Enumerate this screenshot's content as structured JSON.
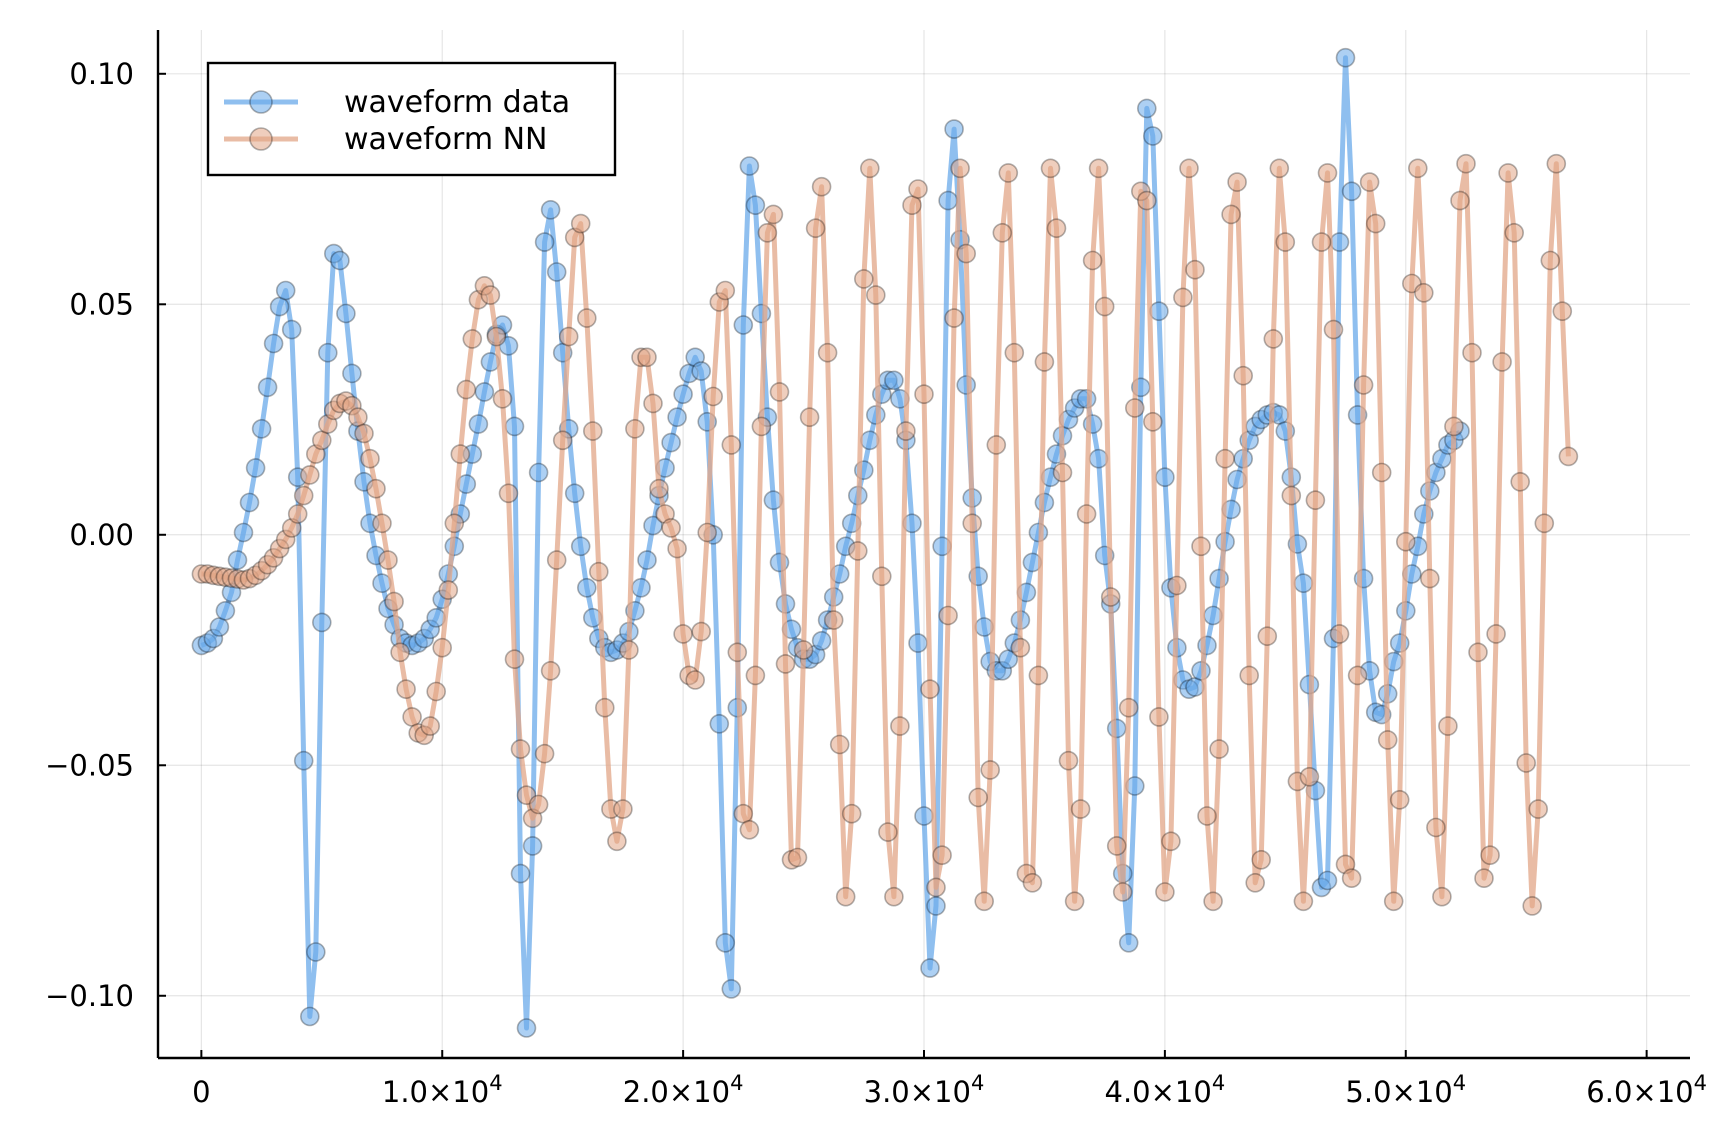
{
  "chart_data": {
    "type": "line",
    "title": "",
    "xlabel": "",
    "ylabel": "",
    "xlim": [
      -1800,
      61800
    ],
    "ylim": [
      -0.1135,
      0.1095
    ],
    "grid": true,
    "legend_position": "top-left",
    "x_ticks": [
      {
        "value": 0,
        "label": "0",
        "sup": ""
      },
      {
        "value": 10000,
        "label": "1.0×10",
        "sup": "4"
      },
      {
        "value": 20000,
        "label": "2.0×10",
        "sup": "4"
      },
      {
        "value": 30000,
        "label": "3.0×10",
        "sup": "4"
      },
      {
        "value": 40000,
        "label": "4.0×10",
        "sup": "4"
      },
      {
        "value": 50000,
        "label": "5.0×10",
        "sup": "4"
      },
      {
        "value": 60000,
        "label": "6.0×10",
        "sup": "4"
      }
    ],
    "y_ticks": [
      {
        "value": 0.1,
        "label": "0.10"
      },
      {
        "value": 0.05,
        "label": "0.05"
      },
      {
        "value": 0.0,
        "label": "0.00"
      },
      {
        "value": -0.05,
        "label": "−0.05"
      },
      {
        "value": -0.1,
        "label": "−0.10"
      }
    ],
    "series": [
      {
        "name": "waveform data",
        "color": "#6aaaea",
        "x_start": 0,
        "x_step": 250,
        "values": [
          -0.024,
          -0.0235,
          -0.0225,
          -0.02,
          -0.0165,
          -0.0125,
          -0.0055,
          0.0005,
          0.007,
          0.0145,
          0.023,
          0.032,
          0.0415,
          0.0495,
          0.053,
          0.0445,
          0.0125,
          -0.049,
          -0.1045,
          -0.0905,
          -0.019,
          0.0395,
          0.061,
          0.0595,
          0.048,
          0.035,
          0.0225,
          0.0115,
          0.0025,
          -0.0045,
          -0.0105,
          -0.016,
          -0.0195,
          -0.0225,
          -0.0235,
          -0.024,
          -0.0235,
          -0.0225,
          -0.0205,
          -0.018,
          -0.014,
          -0.0085,
          -0.0025,
          0.0045,
          0.011,
          0.0175,
          0.024,
          0.031,
          0.0375,
          0.0435,
          0.0455,
          0.041,
          0.0235,
          -0.0735,
          -0.107,
          -0.0675,
          0.0135,
          0.0635,
          0.0705,
          0.057,
          0.0395,
          0.023,
          0.009,
          -0.0025,
          -0.0115,
          -0.018,
          -0.0225,
          -0.0245,
          -0.0255,
          -0.025,
          -0.0235,
          -0.021,
          -0.0165,
          -0.0115,
          -0.0055,
          0.002,
          0.0085,
          0.0145,
          0.02,
          0.0255,
          0.0305,
          0.035,
          0.0385,
          0.0355,
          0.0245,
          0,
          -0.041,
          -0.0885,
          -0.0985,
          -0.0375,
          0.0455,
          0.08,
          0.0715,
          0.048,
          0.0255,
          0.0075,
          -0.006,
          -0.015,
          -0.0205,
          -0.0245,
          -0.027,
          -0.027,
          -0.026,
          -0.023,
          -0.0185,
          -0.0135,
          -0.0085,
          -0.0025,
          0.0025,
          0.0085,
          0.014,
          0.0205,
          0.026,
          0.0305,
          0.0335,
          0.0335,
          0.0295,
          0.0205,
          0.0025,
          -0.0235,
          -0.061,
          -0.094,
          -0.0805,
          -0.0025,
          0.0725,
          0.088,
          0.064,
          0.0325,
          0.008,
          -0.009,
          -0.02,
          -0.0275,
          -0.0295,
          -0.0295,
          -0.027,
          -0.0235,
          -0.0185,
          -0.0125,
          -0.006,
          0.0005,
          0.007,
          0.0125,
          0.0175,
          0.0215,
          0.025,
          0.0275,
          0.0295,
          0.0295,
          0.024,
          0.0165,
          -0.0045,
          -0.015,
          -0.042,
          -0.0735,
          -0.0885,
          -0.0545,
          0.032,
          0.0925,
          0.0865,
          0.0485,
          0.0125,
          -0.0115,
          -0.0245,
          -0.0315,
          -0.0335,
          -0.033,
          -0.0295,
          -0.024,
          -0.0175,
          -0.0095,
          -0.0015,
          0.0055,
          0.012,
          0.0165,
          0.0205,
          0.0235,
          0.025,
          0.026,
          0.0265,
          0.026,
          0.0225,
          0.0125,
          -0.002,
          -0.0105,
          -0.0325,
          -0.0555,
          -0.0765,
          -0.075,
          -0.0225,
          0.0635,
          0.1035,
          0.0745,
          0.026,
          -0.0095,
          -0.0295,
          -0.0385,
          -0.039,
          -0.0345,
          -0.0275,
          -0.0235,
          -0.0165,
          -0.0085,
          -0.0025,
          0.0045,
          0.0095,
          0.0135,
          0.0165,
          0.0195,
          0.0205,
          0.0225
        ]
      },
      {
        "name": "waveform NN",
        "color": "#e2a587",
        "x_start": 0,
        "x_step": 250,
        "values": [
          -0.0085,
          -0.0085,
          -0.0088,
          -0.009,
          -0.0092,
          -0.0094,
          -0.0096,
          -0.0098,
          -0.0095,
          -0.0088,
          -0.0078,
          -0.0065,
          -0.005,
          -0.003,
          -0.001,
          0.0015,
          0.0045,
          0.0085,
          0.013,
          0.0175,
          0.0205,
          0.024,
          0.027,
          0.0285,
          0.029,
          0.028,
          0.0255,
          0.022,
          0.0165,
          0.01,
          0.0025,
          -0.0055,
          -0.0145,
          -0.0255,
          -0.0335,
          -0.0395,
          -0.043,
          -0.0435,
          -0.0415,
          -0.034,
          -0.0245,
          -0.012,
          0.0025,
          0.0175,
          0.0315,
          0.0425,
          0.051,
          0.054,
          0.052,
          0.043,
          0.0295,
          0.009,
          -0.027,
          -0.0465,
          -0.0565,
          -0.0615,
          -0.0585,
          -0.0475,
          -0.0295,
          -0.0055,
          0.0205,
          0.043,
          0.0645,
          0.0675,
          0.047,
          0.0225,
          -0.008,
          -0.0375,
          -0.0595,
          -0.0665,
          -0.0595,
          -0.025,
          0.023,
          0.0385,
          0.0385,
          0.0285,
          0.01,
          0.0045,
          0.0015,
          -0.003,
          -0.0215,
          -0.0305,
          -0.0315,
          -0.021,
          0.0005,
          0.03,
          0.0505,
          0.053,
          0.0195,
          -0.0255,
          -0.0605,
          -0.064,
          -0.0305,
          0.0235,
          0.0655,
          0.0695,
          0.031,
          -0.028,
          -0.0705,
          -0.07,
          -0.025,
          0.0255,
          0.0665,
          0.0755,
          0.0395,
          -0.0185,
          -0.0455,
          -0.0785,
          -0.0605,
          -0.0035,
          0.0555,
          0.0795,
          0.052,
          -0.009,
          -0.0645,
          -0.0785,
          -0.0415,
          0.0225,
          0.0715,
          0.075,
          0.0305,
          -0.0335,
          -0.0765,
          -0.0695,
          -0.0175,
          0.047,
          0.0795,
          0.061,
          0.0025,
          -0.057,
          -0.0795,
          -0.051,
          0.0195,
          0.0655,
          0.0785,
          0.0395,
          -0.0245,
          -0.0735,
          -0.0755,
          -0.0305,
          0.0375,
          0.0795,
          0.0665,
          0.0135,
          -0.049,
          -0.0795,
          -0.0595,
          0.0045,
          0.0595,
          0.0795,
          0.0495,
          -0.0135,
          -0.0675,
          -0.0775,
          -0.0375,
          0.0275,
          0.0745,
          0.0725,
          0.0245,
          -0.0395,
          -0.0775,
          -0.0665,
          -0.011,
          0.0515,
          0.0795,
          0.0575,
          -0.0025,
          -0.061,
          -0.0795,
          -0.0465,
          0.0165,
          0.0695,
          0.0765,
          0.0345,
          -0.0305,
          -0.0755,
          -0.0705,
          -0.022,
          0.0425,
          0.0795,
          0.0635,
          0.0085,
          -0.0535,
          -0.0795,
          -0.0525,
          0.0075,
          0.0635,
          0.0785,
          0.0445,
          -0.0215,
          -0.0715,
          -0.0745,
          -0.0305,
          0.0325,
          0.0765,
          0.0675,
          0.0135,
          -0.0445,
          -0.0795,
          -0.0575,
          -0.0015,
          0.0545,
          0.0795,
          0.0525,
          -0.0095,
          -0.0635,
          -0.0785,
          -0.0415,
          0.0235,
          0.0725,
          0.0805,
          0.0395,
          -0.0255,
          -0.0745,
          -0.0695,
          -0.0215,
          0.0375,
          0.0785,
          0.0655,
          0.0115,
          -0.0495,
          -0.0805,
          -0.0595,
          0.0025,
          0.0595,
          0.0805,
          0.0485,
          0.017
        ]
      }
    ]
  }
}
